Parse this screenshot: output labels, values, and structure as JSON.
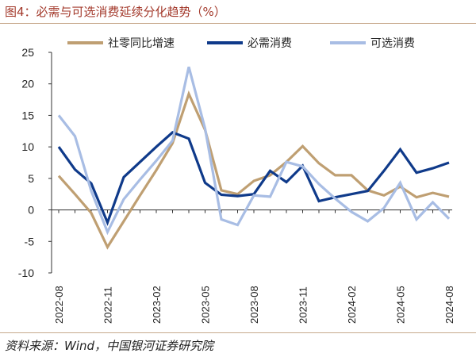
{
  "figure": {
    "title": "图4：必需与可选消费延续分化趋势（%）",
    "source": "资料来源：Wind，中国银河证券研究院"
  },
  "chart_data": {
    "type": "line",
    "x": [
      "2022-08",
      "2022-09",
      "2022-10",
      "2022-11",
      "2022-12",
      "2023-01",
      "2023-02",
      "2023-03",
      "2023-04",
      "2023-05",
      "2023-06",
      "2023-07",
      "2023-08",
      "2023-09",
      "2023-10",
      "2023-11",
      "2023-12",
      "2024-01",
      "2024-02",
      "2024-03",
      "2024-04",
      "2024-05",
      "2024-06",
      "2024-07",
      "2024-08"
    ],
    "x_tick_labels": [
      "2022-08",
      "2022-11",
      "2023-02",
      "2023-05",
      "2023-08",
      "2023-11",
      "2024-02",
      "2024-05",
      "2024-08"
    ],
    "x_tick_index": [
      0,
      3,
      6,
      9,
      12,
      15,
      18,
      21,
      24
    ],
    "y_ticks": [
      25,
      20,
      15,
      10,
      5,
      0,
      -5,
      -10
    ],
    "ylim": [
      -10,
      25
    ],
    "series": [
      {
        "name": "社零同比增速",
        "color": "#bf9f72",
        "values": [
          5.4,
          2.5,
          -0.5,
          -5.9,
          -1.8,
          2.3,
          6.3,
          10.6,
          18.4,
          12.7,
          3.1,
          2.5,
          4.6,
          5.5,
          7.6,
          10.1,
          7.4,
          5.5,
          5.5,
          3.1,
          2.3,
          3.7,
          2.0,
          2.7,
          2.1
        ]
      },
      {
        "name": "必需消费",
        "color": "#0f3a8a",
        "values": [
          10.0,
          6.4,
          4.2,
          -2.0,
          5.2,
          7.6,
          10.0,
          12.3,
          11.3,
          4.3,
          2.4,
          2.2,
          2.5,
          6.2,
          4.4,
          7.0,
          1.4,
          2.0,
          2.5,
          3.0,
          6.2,
          9.6,
          5.9,
          6.6,
          7.5
        ]
      },
      {
        "name": "可选消费",
        "color": "#a8bde4",
        "values": [
          15.0,
          11.7,
          3.0,
          -3.5,
          1.7,
          4.8,
          7.8,
          11.0,
          22.7,
          12.9,
          -1.5,
          -2.4,
          2.3,
          2.1,
          7.6,
          6.9,
          4.1,
          1.8,
          -0.3,
          -1.8,
          0.3,
          4.3,
          -1.5,
          1.2,
          -1.4
        ]
      }
    ],
    "grid": false,
    "legend_position": "top"
  }
}
